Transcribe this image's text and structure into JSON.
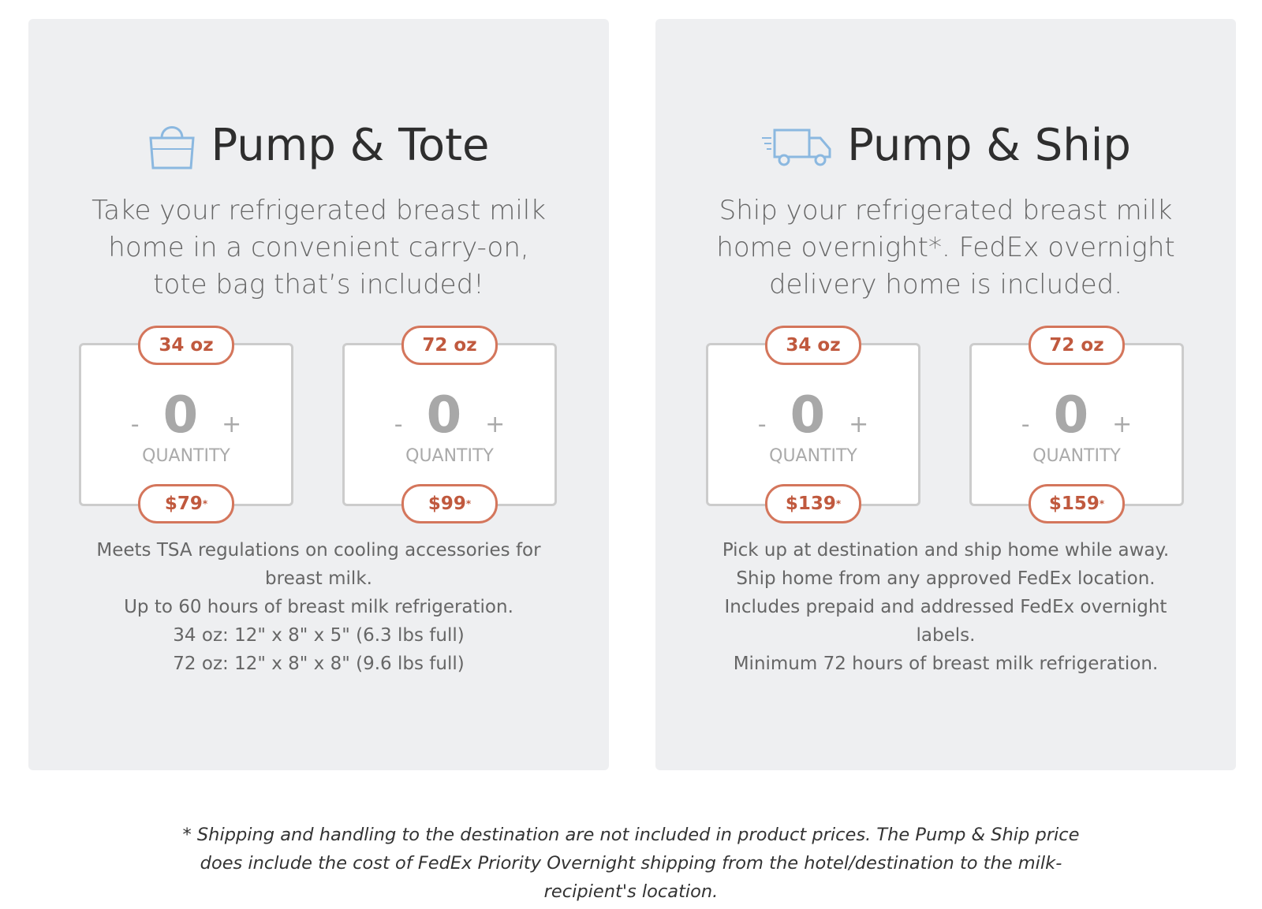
{
  "products": [
    {
      "title": "Pump & Tote",
      "description": "Take your refrigerated breast milk home in a convenient carry-on, tote bag that’s included!",
      "options": [
        {
          "size": "34 oz",
          "decrement": "-",
          "quantity": 0,
          "increment": "+",
          "quantity_label": "QUANTITY",
          "price": "$79",
          "price_note": "*"
        },
        {
          "size": "72 oz",
          "decrement": "-",
          "quantity": 0,
          "increment": "+",
          "quantity_label": "QUANTITY",
          "price": "$99",
          "price_note": "*"
        }
      ],
      "features": [
        "Meets TSA regulations on cooling accessories for breast milk.",
        "Up to 60 hours of breast milk refrigeration.",
        "34 oz: 12\" x 8\" x 5\" (6.3 lbs full)",
        "72 oz: 12\" x 8\" x 8\" (9.6 lbs full)"
      ]
    },
    {
      "title": "Pump & Ship",
      "description": "Ship your refrigerated breast milk home overnight*. FedEx overnight delivery home is included.",
      "options": [
        {
          "size": "34 oz",
          "decrement": "-",
          "quantity": 0,
          "increment": "+",
          "quantity_label": "QUANTITY",
          "price": "$139",
          "price_note": "*"
        },
        {
          "size": "72 oz",
          "decrement": "-",
          "quantity": 0,
          "increment": "+",
          "quantity_label": "QUANTITY",
          "price": "$159",
          "price_note": "*"
        }
      ],
      "features": [
        "Pick up at destination and ship home while away.",
        "Ship home from any approved FedEx location.",
        "Includes prepaid and addressed FedEx overnight labels.",
        "Minimum 72 hours of breast milk refrigeration."
      ]
    }
  ],
  "footnote": "* Shipping and handling to the destination are not included in product prices. The Pump & Ship price does include the cost of FedEx Priority Overnight shipping from the hotel/destination to the milk-recipient's location."
}
